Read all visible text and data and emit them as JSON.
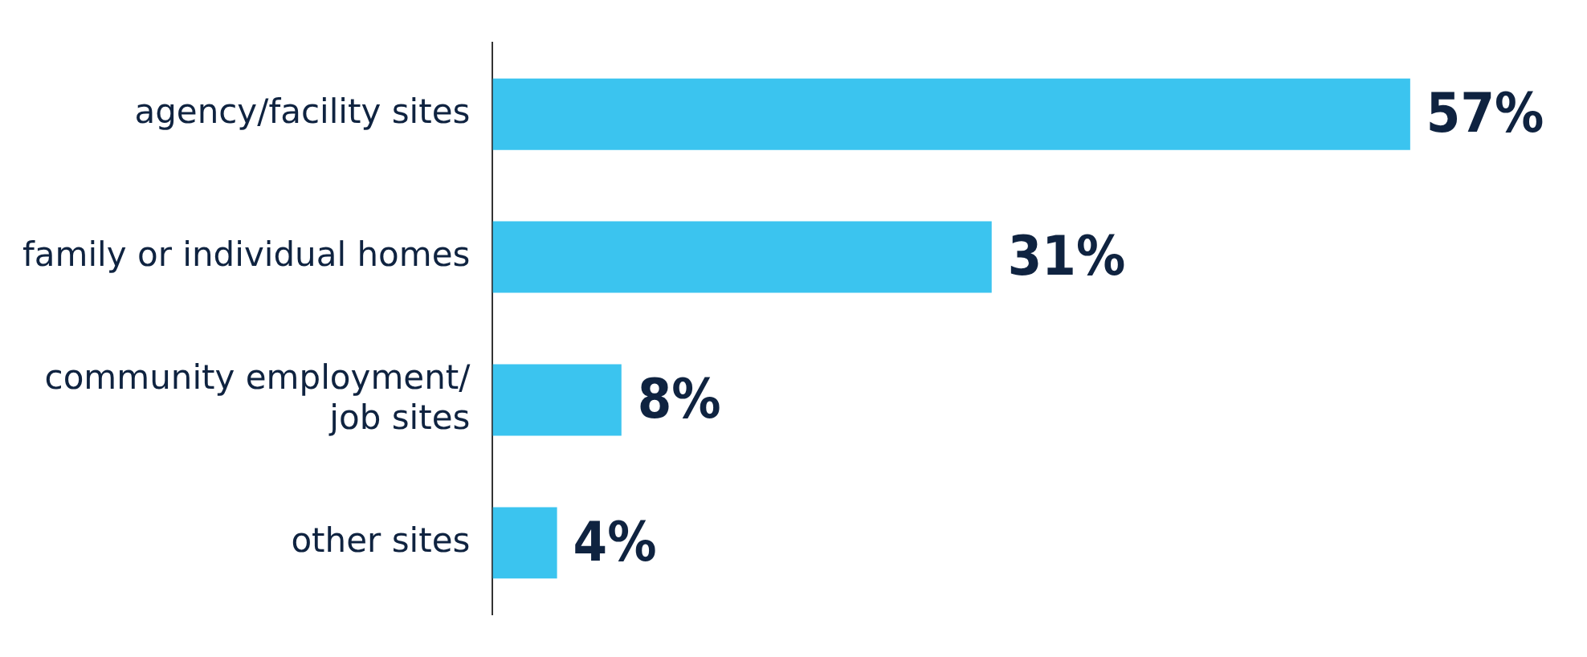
{
  "chart_data": {
    "type": "bar",
    "orientation": "horizontal",
    "categories": [
      "agency/facility sites",
      "family or individual homes",
      "community employment/ job sites",
      "other sites"
    ],
    "values": [
      57,
      31,
      8,
      4
    ],
    "color": "#3bc4ef",
    "value_labels": [
      "57%",
      "31%",
      "8%",
      "4%"
    ],
    "tick_labels": "y",
    "grid": false,
    "legend": false
  }
}
